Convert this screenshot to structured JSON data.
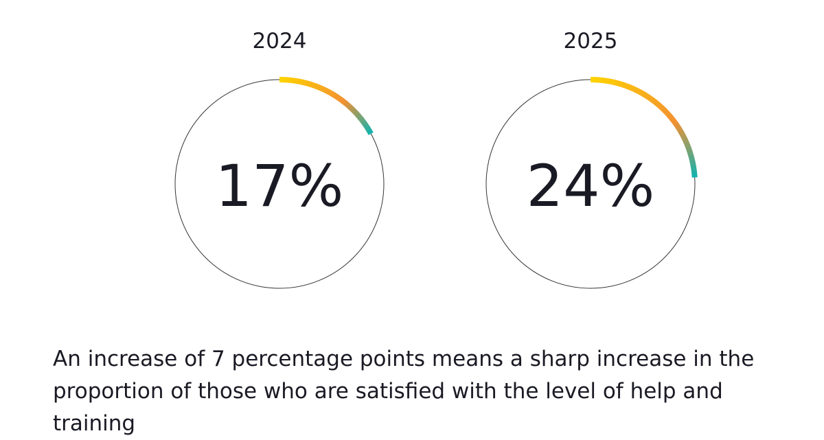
{
  "chart_data": [
    {
      "type": "pie",
      "title": "2024",
      "value": 17,
      "value_label": "17%",
      "max": 100,
      "arc_colors": [
        "#ffd400",
        "#f39131",
        "#0fb3b0"
      ],
      "ring_color": "#333333"
    },
    {
      "type": "pie",
      "title": "2025",
      "value": 24,
      "value_label": "24%",
      "max": 100,
      "arc_colors": [
        "#ffd400",
        "#f39131",
        "#0fb3b0"
      ],
      "ring_color": "#333333"
    }
  ],
  "caption": {
    "line1": "An increase of 7 percentage points means a sharp increase in the",
    "line2": "proportion of those who are satisfied with the level of help and training"
  }
}
